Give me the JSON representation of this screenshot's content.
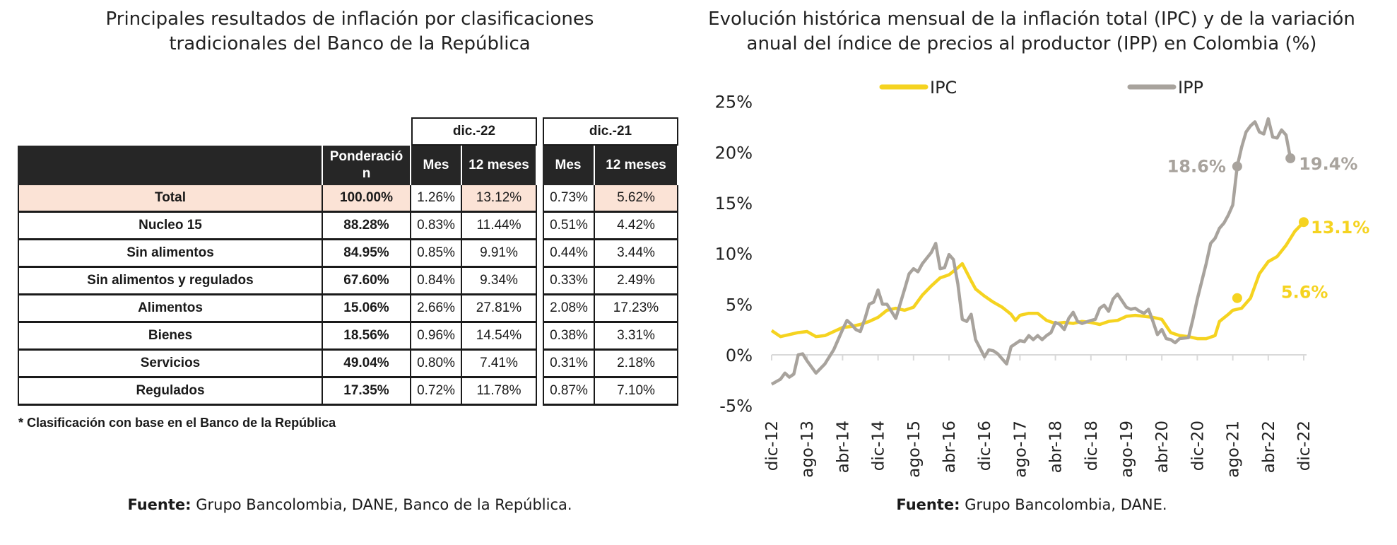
{
  "left": {
    "title_lines": [
      "Principales resultados de inflación por clasificaciones",
      "tradicionales del Banco de la República"
    ],
    "table": {
      "group_headers": [
        "dic.-22",
        "dic.-21"
      ],
      "column_headers": [
        "Ponderació n",
        "Mes",
        "12 meses",
        "Mes",
        "12 meses"
      ],
      "rows": [
        {
          "label": "Total",
          "values": [
            "100.00%",
            "1.26%",
            "13.12%",
            "0.73%",
            "5.62%"
          ]
        },
        {
          "label": "Nucleo 15",
          "values": [
            "88.28%",
            "0.83%",
            "11.44%",
            "0.51%",
            "4.42%"
          ]
        },
        {
          "label": "Sin alimentos",
          "values": [
            "84.95%",
            "0.85%",
            "9.91%",
            "0.44%",
            "3.44%"
          ]
        },
        {
          "label": "Sin alimentos y regulados",
          "values": [
            "67.60%",
            "0.84%",
            "9.34%",
            "0.33%",
            "2.49%"
          ]
        },
        {
          "label": "Alimentos",
          "values": [
            "15.06%",
            "2.66%",
            "27.81%",
            "2.08%",
            "17.23%"
          ]
        },
        {
          "label": "Bienes",
          "values": [
            "18.56%",
            "0.96%",
            "14.54%",
            "0.38%",
            "3.31%"
          ]
        },
        {
          "label": "Servicios",
          "values": [
            "49.04%",
            "0.80%",
            "7.41%",
            "0.31%",
            "2.18%"
          ]
        },
        {
          "label": "Regulados",
          "values": [
            "17.35%",
            "0.72%",
            "11.78%",
            "0.87%",
            "7.10%"
          ]
        }
      ],
      "highlight_color": "#fbe3d6",
      "header_color": "#262626"
    },
    "footnote": "* Clasificación con base en el Banco de la República",
    "source_label": "Fuente:",
    "source_text": " Grupo Bancolombia, DANE, Banco de la República."
  },
  "right": {
    "source_label": "Fuente:",
    "source_text": " Grupo Bancolombia, DANE."
  },
  "chart_data": {
    "type": "line",
    "title": "Evolución histórica mensual de la inflación total (IPC) y de la variación anual del índice de precios al productor (IPP) en Colombia (%)",
    "title_lines": [
      "Evolución histórica mensual de la inflación total (IPC) y de la variación",
      "anual del índice de precios al productor (IPP) en Colombia (%)"
    ],
    "xlabel": "",
    "ylabel": "",
    "x_range": [
      "2012-12",
      "2022-12"
    ],
    "x_ticks": [
      "dic-12",
      "ago-13",
      "abr-14",
      "dic-14",
      "ago-15",
      "abr-16",
      "dic-16",
      "ago-17",
      "abr-18",
      "dic-18",
      "ago-19",
      "abr-20",
      "dic-20",
      "ago-21",
      "abr-22",
      "dic-22"
    ],
    "x_tick_dates": [
      "2012-12",
      "2013-08",
      "2014-04",
      "2014-12",
      "2015-08",
      "2016-04",
      "2016-12",
      "2017-08",
      "2018-04",
      "2018-12",
      "2019-08",
      "2020-04",
      "2020-12",
      "2021-08",
      "2022-04",
      "2022-12"
    ],
    "ylim": [
      -5,
      25
    ],
    "y_ticks": [
      -5,
      0,
      5,
      10,
      15,
      20,
      25
    ],
    "y_tick_labels": [
      "-5%",
      "0%",
      "5%",
      "10%",
      "15%",
      "20%",
      "25%"
    ],
    "grid": false,
    "legend": "top",
    "series": [
      {
        "name": "IPC",
        "color": "#f5d320",
        "points": [
          [
            "2012-12",
            2.4
          ],
          [
            "2013-02",
            1.8
          ],
          [
            "2013-04",
            2.0
          ],
          [
            "2013-06",
            2.2
          ],
          [
            "2013-08",
            2.3
          ],
          [
            "2013-10",
            1.8
          ],
          [
            "2013-12",
            1.9
          ],
          [
            "2014-02",
            2.3
          ],
          [
            "2014-04",
            2.7
          ],
          [
            "2014-06",
            2.8
          ],
          [
            "2014-08",
            3.0
          ],
          [
            "2014-10",
            3.3
          ],
          [
            "2014-12",
            3.7
          ],
          [
            "2015-02",
            4.4
          ],
          [
            "2015-04",
            4.6
          ],
          [
            "2015-06",
            4.4
          ],
          [
            "2015-08",
            4.7
          ],
          [
            "2015-10",
            5.9
          ],
          [
            "2015-12",
            6.8
          ],
          [
            "2016-02",
            7.6
          ],
          [
            "2016-04",
            7.9
          ],
          [
            "2016-06",
            8.6
          ],
          [
            "2016-07",
            9.0
          ],
          [
            "2016-09",
            7.3
          ],
          [
            "2016-10",
            6.5
          ],
          [
            "2016-12",
            5.8
          ],
          [
            "2017-02",
            5.2
          ],
          [
            "2017-04",
            4.7
          ],
          [
            "2017-06",
            4.0
          ],
          [
            "2017-07",
            3.4
          ],
          [
            "2017-08",
            3.9
          ],
          [
            "2017-10",
            4.1
          ],
          [
            "2017-12",
            4.1
          ],
          [
            "2018-02",
            3.4
          ],
          [
            "2018-04",
            3.1
          ],
          [
            "2018-06",
            3.2
          ],
          [
            "2018-08",
            3.1
          ],
          [
            "2018-10",
            3.3
          ],
          [
            "2018-12",
            3.2
          ],
          [
            "2019-02",
            3.0
          ],
          [
            "2019-04",
            3.3
          ],
          [
            "2019-06",
            3.4
          ],
          [
            "2019-08",
            3.8
          ],
          [
            "2019-10",
            3.9
          ],
          [
            "2019-12",
            3.8
          ],
          [
            "2020-02",
            3.7
          ],
          [
            "2020-04",
            3.5
          ],
          [
            "2020-06",
            2.2
          ],
          [
            "2020-08",
            1.9
          ],
          [
            "2020-10",
            1.8
          ],
          [
            "2020-12",
            1.6
          ],
          [
            "2021-02",
            1.6
          ],
          [
            "2021-04",
            1.9
          ],
          [
            "2021-05",
            3.3
          ],
          [
            "2021-07",
            4.0
          ],
          [
            "2021-08",
            4.4
          ],
          [
            "2021-10",
            4.6
          ],
          [
            "2021-12",
            5.6
          ],
          [
            "2022-02",
            8.0
          ],
          [
            "2022-04",
            9.2
          ],
          [
            "2022-06",
            9.7
          ],
          [
            "2022-08",
            10.8
          ],
          [
            "2022-10",
            12.2
          ],
          [
            "2022-12",
            13.1
          ]
        ]
      },
      {
        "name": "IPP",
        "color": "#a8a39d",
        "points": [
          [
            "2012-12",
            -2.9
          ],
          [
            "2013-02",
            -2.4
          ],
          [
            "2013-03",
            -1.8
          ],
          [
            "2013-04",
            -2.2
          ],
          [
            "2013-05",
            -1.9
          ],
          [
            "2013-06",
            0.0
          ],
          [
            "2013-07",
            0.1
          ],
          [
            "2013-08",
            -0.6
          ],
          [
            "2013-10",
            -1.8
          ],
          [
            "2013-12",
            -0.9
          ],
          [
            "2014-02",
            0.5
          ],
          [
            "2014-04",
            2.5
          ],
          [
            "2014-05",
            3.4
          ],
          [
            "2014-06",
            3.0
          ],
          [
            "2014-07",
            2.5
          ],
          [
            "2014-08",
            2.3
          ],
          [
            "2014-09",
            3.5
          ],
          [
            "2014-10",
            5.0
          ],
          [
            "2014-11",
            5.2
          ],
          [
            "2014-12",
            6.4
          ],
          [
            "2015-01",
            5.0
          ],
          [
            "2015-02",
            5.0
          ],
          [
            "2015-03",
            4.3
          ],
          [
            "2015-04",
            3.6
          ],
          [
            "2015-06",
            6.5
          ],
          [
            "2015-07",
            8.0
          ],
          [
            "2015-08",
            8.5
          ],
          [
            "2015-09",
            8.2
          ],
          [
            "2015-10",
            9.0
          ],
          [
            "2015-12",
            10.1
          ],
          [
            "2016-01",
            11.0
          ],
          [
            "2016-02",
            8.5
          ],
          [
            "2016-03",
            8.6
          ],
          [
            "2016-04",
            9.9
          ],
          [
            "2016-05",
            9.4
          ],
          [
            "2016-06",
            7.0
          ],
          [
            "2016-07",
            3.5
          ],
          [
            "2016-08",
            3.3
          ],
          [
            "2016-09",
            4.0
          ],
          [
            "2016-10",
            1.5
          ],
          [
            "2016-12",
            -0.2
          ],
          [
            "2017-01",
            0.5
          ],
          [
            "2017-02",
            0.4
          ],
          [
            "2017-03",
            0.1
          ],
          [
            "2017-05",
            -0.9
          ],
          [
            "2017-06",
            0.8
          ],
          [
            "2017-08",
            1.4
          ],
          [
            "2017-09",
            1.3
          ],
          [
            "2017-10",
            1.9
          ],
          [
            "2017-11",
            1.5
          ],
          [
            "2017-12",
            1.9
          ],
          [
            "2018-01",
            1.5
          ],
          [
            "2018-02",
            1.9
          ],
          [
            "2018-03",
            2.2
          ],
          [
            "2018-04",
            3.2
          ],
          [
            "2018-05",
            3.0
          ],
          [
            "2018-06",
            2.5
          ],
          [
            "2018-07",
            3.6
          ],
          [
            "2018-08",
            4.2
          ],
          [
            "2018-09",
            3.3
          ],
          [
            "2018-10",
            3.1
          ],
          [
            "2018-12",
            3.4
          ],
          [
            "2019-01",
            3.5
          ],
          [
            "2019-02",
            4.6
          ],
          [
            "2019-03",
            4.9
          ],
          [
            "2019-04",
            4.3
          ],
          [
            "2019-05",
            5.5
          ],
          [
            "2019-06",
            6.0
          ],
          [
            "2019-08",
            4.7
          ],
          [
            "2019-09",
            4.5
          ],
          [
            "2019-10",
            4.6
          ],
          [
            "2019-11",
            4.3
          ],
          [
            "2019-12",
            4.1
          ],
          [
            "2020-01",
            4.5
          ],
          [
            "2020-02",
            3.3
          ],
          [
            "2020-03",
            2.0
          ],
          [
            "2020-04",
            2.5
          ],
          [
            "2020-05",
            1.6
          ],
          [
            "2020-06",
            1.5
          ],
          [
            "2020-07",
            1.2
          ],
          [
            "2020-08",
            1.6
          ],
          [
            "2020-10",
            1.7
          ],
          [
            "2020-11",
            3.5
          ],
          [
            "2020-12",
            5.5
          ],
          [
            "2021-02",
            9.0
          ],
          [
            "2021-03",
            11.0
          ],
          [
            "2021-04",
            11.5
          ],
          [
            "2021-05",
            12.5
          ],
          [
            "2021-06",
            13.0
          ],
          [
            "2021-07",
            13.8
          ],
          [
            "2021-08",
            14.8
          ],
          [
            "2021-09",
            18.6
          ],
          [
            "2021-10",
            20.5
          ],
          [
            "2021-11",
            22.0
          ],
          [
            "2021-12",
            22.6
          ],
          [
            "2022-01",
            23.0
          ],
          [
            "2022-02",
            22.0
          ],
          [
            "2022-03",
            21.8
          ],
          [
            "2022-04",
            23.3
          ],
          [
            "2022-05",
            21.5
          ],
          [
            "2022-06",
            21.4
          ],
          [
            "2022-07",
            22.2
          ],
          [
            "2022-08",
            21.7
          ],
          [
            "2022-09",
            19.4
          ]
        ]
      }
    ],
    "annotations": [
      {
        "series": "IPP",
        "x": "2021-09",
        "y": 18.6,
        "label": "18.6%"
      },
      {
        "series": "IPP",
        "x": "2022-09",
        "y": 19.4,
        "label": "19.4%"
      },
      {
        "series": "IPC",
        "x": "2021-09",
        "y": 5.6,
        "label": "5.6%"
      },
      {
        "series": "IPC",
        "x": "2022-12",
        "y": 13.1,
        "label": "13.1%"
      }
    ]
  }
}
